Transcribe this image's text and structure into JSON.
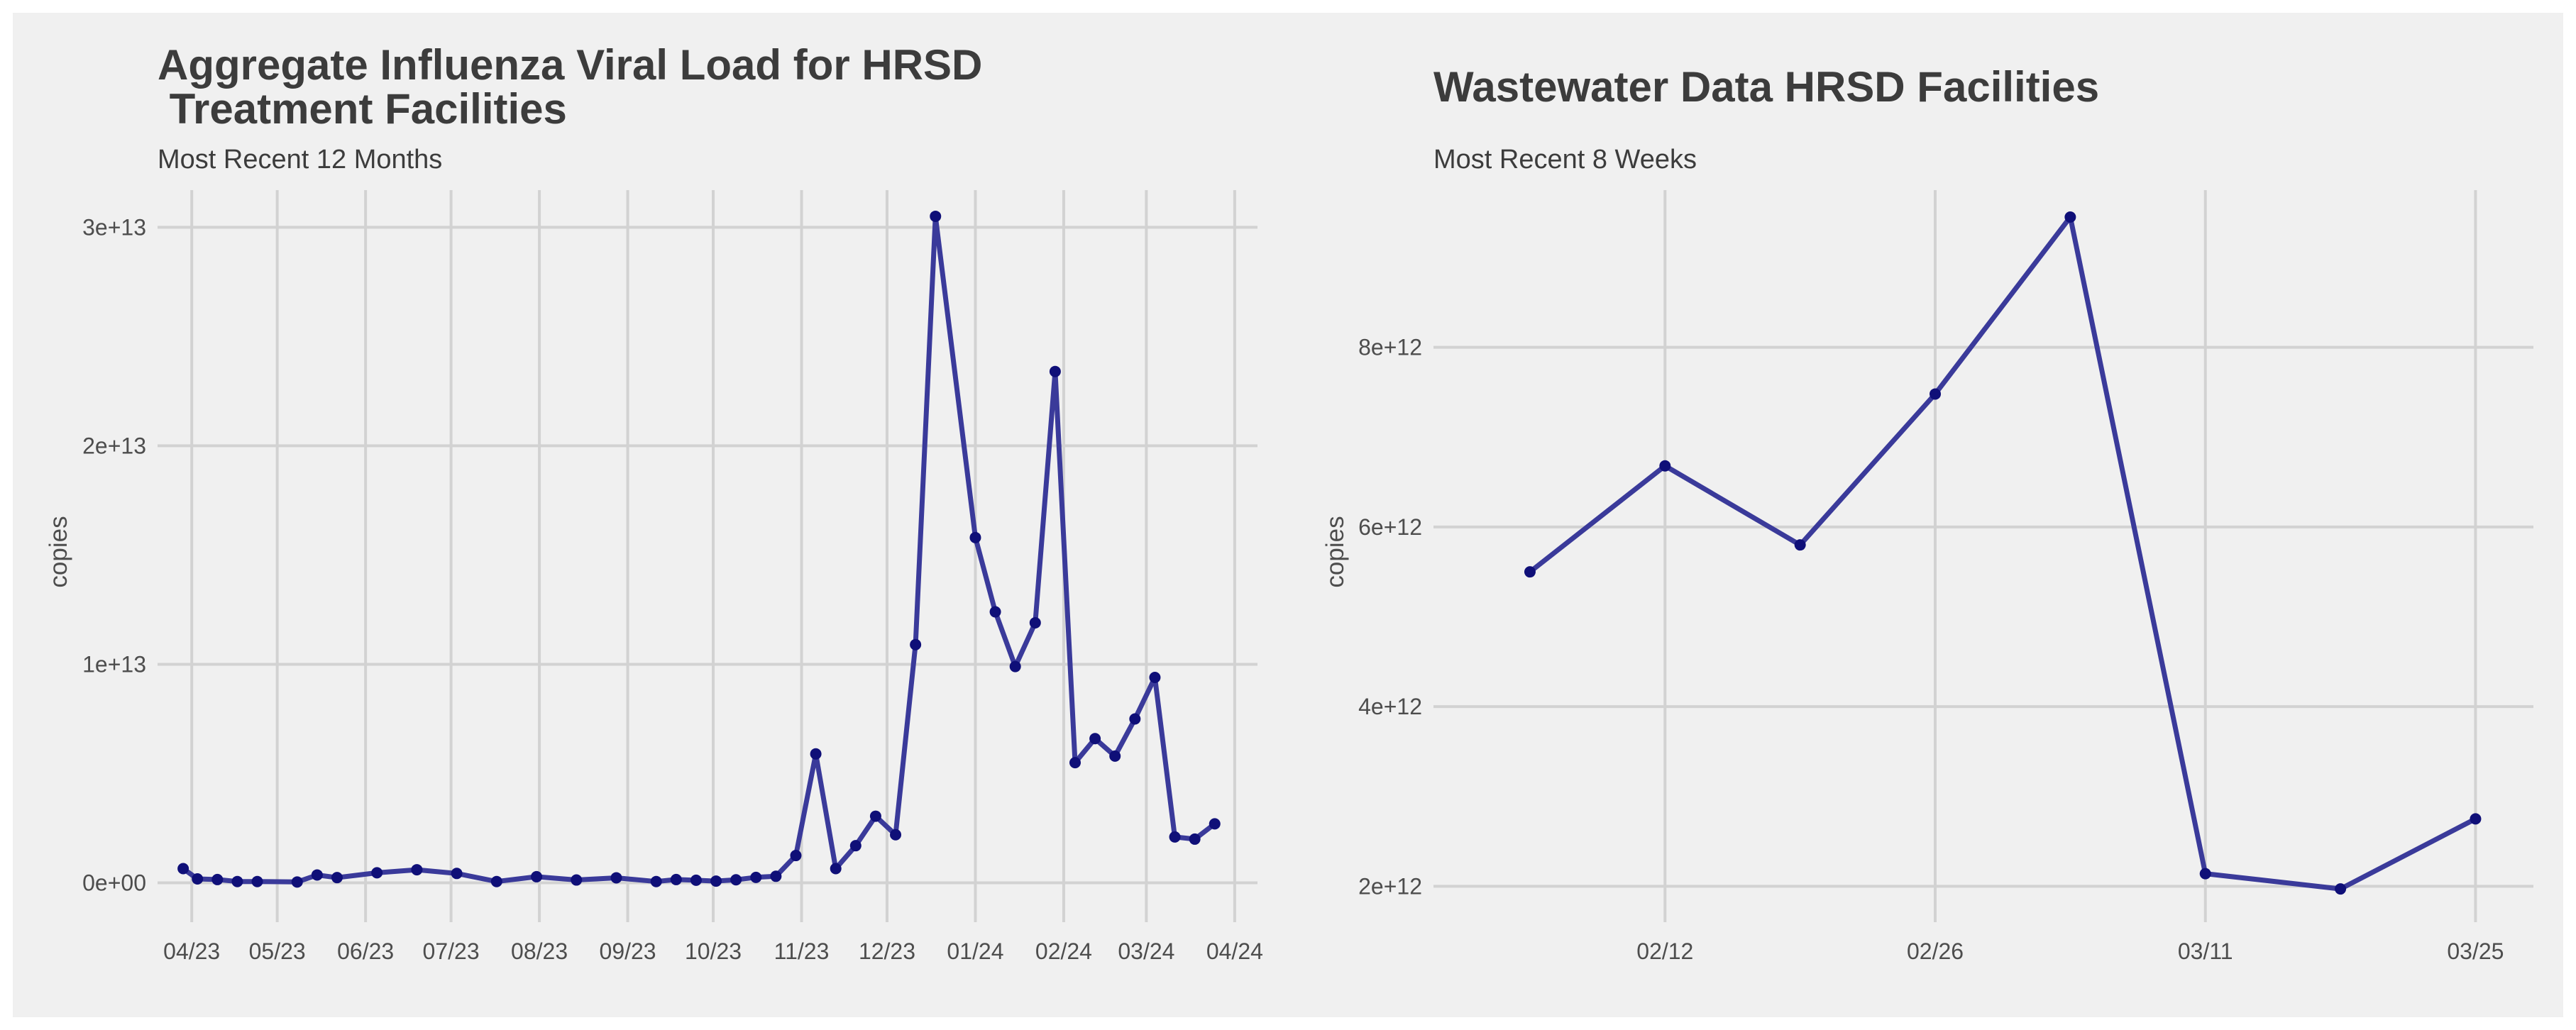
{
  "colors": {
    "background": "#f0f0f0",
    "grid": "#d2d2d2",
    "line": "#3a3a9a",
    "point": "#0f0f78",
    "text": "#3c3c3c"
  },
  "chart_data": [
    {
      "type": "line",
      "title_lines": [
        "Aggregate Influenza Viral Load for HRSD",
        " Treatment Facilities"
      ],
      "subtitle": "Most Recent 12 Months",
      "xlabel": "",
      "ylabel": "copies",
      "x_axis_type": "date",
      "grid": true,
      "legend": "none",
      "xlim": [
        "2023-03-20",
        "2024-04-09"
      ],
      "ylim": [
        -1800000000000.0,
        31700000000000.0
      ],
      "x_ticks": [
        {
          "date": "2023-04-01",
          "label": "04/23"
        },
        {
          "date": "2023-05-01",
          "label": "05/23"
        },
        {
          "date": "2023-06-01",
          "label": "06/23"
        },
        {
          "date": "2023-07-01",
          "label": "07/23"
        },
        {
          "date": "2023-08-01",
          "label": "08/23"
        },
        {
          "date": "2023-09-01",
          "label": "09/23"
        },
        {
          "date": "2023-10-01",
          "label": "10/23"
        },
        {
          "date": "2023-11-01",
          "label": "11/23"
        },
        {
          "date": "2023-12-01",
          "label": "12/23"
        },
        {
          "date": "2024-01-01",
          "label": "01/24"
        },
        {
          "date": "2024-02-01",
          "label": "02/24"
        },
        {
          "date": "2024-03-01",
          "label": "03/24"
        },
        {
          "date": "2024-04-01",
          "label": "04/24"
        }
      ],
      "y_ticks": [
        {
          "value": 0,
          "label": "0e+00"
        },
        {
          "value": 10000000000000.0,
          "label": "1e+13"
        },
        {
          "value": 20000000000000.0,
          "label": "2e+13"
        },
        {
          "value": 30000000000000.0,
          "label": "3e+13"
        }
      ],
      "series": [
        {
          "x": [
            "2023-03-29",
            "2023-04-03",
            "2023-04-10",
            "2023-04-17",
            "2023-04-24",
            "2023-05-08",
            "2023-05-15",
            "2023-05-22",
            "2023-06-05",
            "2023-06-19",
            "2023-07-03",
            "2023-07-17",
            "2023-07-31",
            "2023-08-14",
            "2023-08-28",
            "2023-09-11",
            "2023-09-18",
            "2023-09-25",
            "2023-10-02",
            "2023-10-09",
            "2023-10-16",
            "2023-10-23",
            "2023-10-30",
            "2023-11-06",
            "2023-11-13",
            "2023-11-20",
            "2023-11-27",
            "2023-12-04",
            "2023-12-11",
            "2023-12-18",
            "2024-01-01",
            "2024-01-08",
            "2024-01-15",
            "2024-01-22",
            "2024-01-29",
            "2024-02-05",
            "2024-02-12",
            "2024-02-19",
            "2024-02-26",
            "2024-03-04",
            "2024-03-11",
            "2024-03-18",
            "2024-03-25"
          ],
          "y": [
            650000000000.0,
            180000000000.0,
            150000000000.0,
            60000000000.0,
            60000000000.0,
            40000000000.0,
            360000000000.0,
            240000000000.0,
            460000000000.0,
            600000000000.0,
            430000000000.0,
            60000000000.0,
            280000000000.0,
            130000000000.0,
            230000000000.0,
            60000000000.0,
            150000000000.0,
            120000000000.0,
            80000000000.0,
            140000000000.0,
            250000000000.0,
            300000000000.0,
            1250000000000.0,
            5900000000000.0,
            650000000000.0,
            1700000000000.0,
            3050000000000.0,
            2200000000000.0,
            10900000000000.0,
            30500000000000.0,
            15800000000000.0,
            12400000000000.0,
            9900000000000.0,
            11900000000000.0,
            23400000000000.0,
            5500000000000.0,
            6600000000000.0,
            5800000000000.0,
            7500000000000.0,
            9400000000000.0,
            2100000000000.0,
            2000000000000.0,
            2700000000000.0
          ]
        }
      ]
    },
    {
      "type": "line",
      "title_lines": [
        "Wastewater Data HRSD Facilities"
      ],
      "subtitle": "Most Recent 8 Weeks",
      "xlabel": "",
      "ylabel": "copies",
      "x_axis_type": "date",
      "grid": true,
      "legend": "none",
      "xlim": [
        "2024-01-31",
        "2024-03-28"
      ],
      "ylim": [
        1600000000000.0,
        9750000000000.0
      ],
      "x_ticks": [
        {
          "date": "2024-02-12",
          "label": "02/12"
        },
        {
          "date": "2024-02-26",
          "label": "02/26"
        },
        {
          "date": "2024-03-11",
          "label": "03/11"
        },
        {
          "date": "2024-03-25",
          "label": "03/25"
        }
      ],
      "y_ticks": [
        {
          "value": 2000000000000.0,
          "label": "2e+12"
        },
        {
          "value": 4000000000000.0,
          "label": "4e+12"
        },
        {
          "value": 6000000000000.0,
          "label": "6e+12"
        },
        {
          "value": 8000000000000.0,
          "label": "8e+12"
        }
      ],
      "series": [
        {
          "x": [
            "2024-02-05",
            "2024-02-12",
            "2024-02-19",
            "2024-02-26",
            "2024-03-04",
            "2024-03-11",
            "2024-03-18",
            "2024-03-25"
          ],
          "y": [
            5500000000000.0,
            6680000000000.0,
            5800000000000.0,
            7480000000000.0,
            9450000000000.0,
            2140000000000.0,
            1970000000000.0,
            2750000000000.0
          ]
        }
      ]
    }
  ]
}
